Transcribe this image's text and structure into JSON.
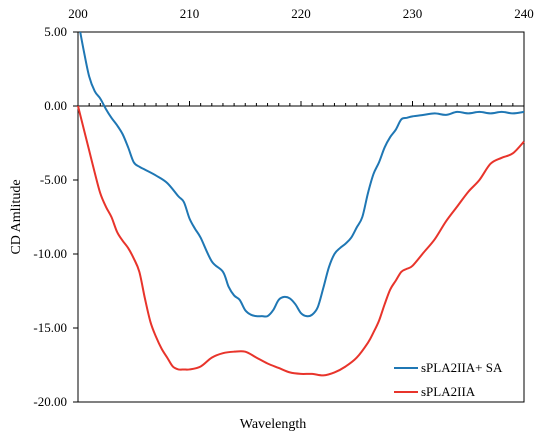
{
  "chart_data": {
    "type": "line",
    "title": "",
    "xlabel": "Wavelength",
    "ylabel": "CD Amlitude",
    "xlim": [
      200,
      240
    ],
    "ylim": [
      -20,
      5
    ],
    "x_axis_position": "top",
    "x_ticks": [
      200,
      210,
      220,
      230,
      240
    ],
    "x_tick_labels": [
      "200",
      "210",
      "220",
      "230",
      "240"
    ],
    "y_ticks": [
      5,
      0,
      -5,
      -10,
      -15,
      -20
    ],
    "y_tick_labels": [
      "5.00",
      "0.00",
      "-5.00",
      "-10.00",
      "-15.00",
      "-20.00"
    ],
    "grid": false,
    "legend_position": "bottom-right",
    "series": [
      {
        "name": "sPLA2IIA+ SA",
        "color": "#1f77b4",
        "x": [
          200.2,
          200.5,
          201,
          201.5,
          202,
          202.5,
          203,
          203.5,
          204,
          204.5,
          205,
          205.5,
          206,
          207,
          208,
          209,
          209.5,
          210,
          210.5,
          211,
          212,
          213,
          213.5,
          214,
          214.5,
          215,
          215.5,
          216,
          216.5,
          217,
          217.5,
          218,
          218.5,
          219,
          219.5,
          220,
          220.5,
          221,
          221.5,
          222,
          222.5,
          223,
          223.5,
          224,
          224.5,
          225,
          225.5,
          226,
          226.5,
          227,
          227.5,
          228,
          228.5,
          229,
          229.5,
          230,
          231,
          232,
          233,
          234,
          235,
          236,
          237,
          238,
          239,
          240
        ],
        "y": [
          5,
          3.8,
          2,
          1,
          0.5,
          -0.2,
          -0.8,
          -1.3,
          -1.9,
          -2.8,
          -3.8,
          -4.1,
          -4.3,
          -4.7,
          -5.2,
          -6.1,
          -6.5,
          -7.6,
          -8.3,
          -8.9,
          -10.5,
          -11.2,
          -12.2,
          -12.8,
          -13.1,
          -13.8,
          -14.1,
          -14.2,
          -14.2,
          -14.2,
          -13.8,
          -13.1,
          -12.9,
          -13.0,
          -13.4,
          -14.0,
          -14.2,
          -14.1,
          -13.6,
          -12.3,
          -10.9,
          -10.0,
          -9.6,
          -9.3,
          -8.9,
          -8.2,
          -7.5,
          -5.9,
          -4.6,
          -3.8,
          -2.8,
          -2.1,
          -1.6,
          -0.9,
          -0.8,
          -0.7,
          -0.6,
          -0.5,
          -0.6,
          -0.4,
          -0.5,
          -0.4,
          -0.5,
          -0.4,
          -0.5,
          -0.4
        ]
      },
      {
        "name": "sPLA2IIA",
        "color": "#e8342b",
        "x": [
          200,
          200.5,
          201,
          201.5,
          202,
          202.5,
          203,
          203.5,
          204,
          204.5,
          205,
          205.5,
          206,
          206.5,
          207,
          207.5,
          208,
          208.5,
          209,
          209.5,
          210,
          211,
          212,
          213,
          214,
          215,
          216,
          217,
          218,
          219,
          220,
          221,
          222,
          223,
          224,
          225,
          226,
          226.5,
          227,
          227.5,
          228,
          228.5,
          229,
          229.5,
          230,
          231,
          232,
          233,
          234,
          235,
          236,
          237,
          238,
          239,
          240
        ],
        "y": [
          0,
          -1.5,
          -3.0,
          -4.5,
          -5.9,
          -6.8,
          -7.5,
          -8.5,
          -9.1,
          -9.6,
          -10.3,
          -11.2,
          -13.0,
          -14.6,
          -15.6,
          -16.4,
          -17.0,
          -17.6,
          -17.8,
          -17.8,
          -17.8,
          -17.6,
          -17.0,
          -16.7,
          -16.6,
          -16.6,
          -17.0,
          -17.4,
          -17.7,
          -18.0,
          -18.1,
          -18.1,
          -18.2,
          -18.0,
          -17.6,
          -17.0,
          -16.0,
          -15.3,
          -14.5,
          -13.4,
          -12.4,
          -11.8,
          -11.2,
          -11.0,
          -10.8,
          -9.9,
          -9.0,
          -7.8,
          -6.8,
          -5.8,
          -5.0,
          -3.9,
          -3.5,
          -3.2,
          -2.4
        ]
      }
    ]
  }
}
